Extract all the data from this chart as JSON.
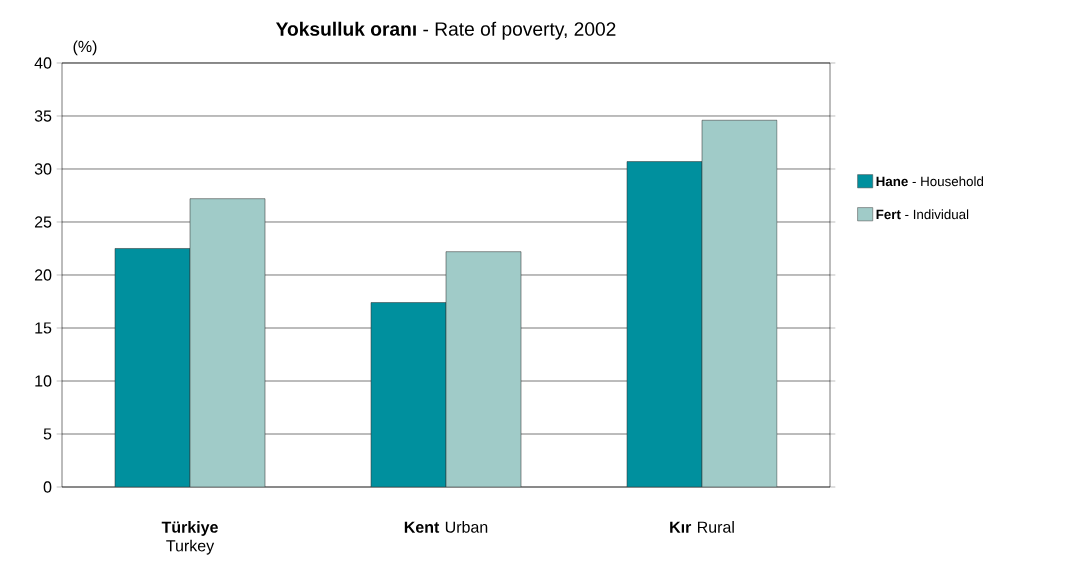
{
  "chart_data": {
    "type": "bar",
    "title": "**Yoksulluk oranı** - Rate of poverty, 2002",
    "ylabel": "(%)",
    "categories": [
      "**Türkiye** Turkey",
      "**Kent** Urban",
      "**Kır** Rural"
    ],
    "series": [
      {
        "name": "**Hane** - Household",
        "color": "#00909e",
        "values": [
          22.5,
          17.4,
          30.7
        ]
      },
      {
        "name": "**Fert** - Individual",
        "color": "#a0cbc8",
        "values": [
          27.2,
          22.2,
          34.6
        ]
      }
    ],
    "ylim": [
      0,
      40
    ],
    "yticks": [
      0,
      5,
      10,
      15,
      20,
      25,
      30,
      35,
      40
    ],
    "grid": "y",
    "legend": "right"
  }
}
